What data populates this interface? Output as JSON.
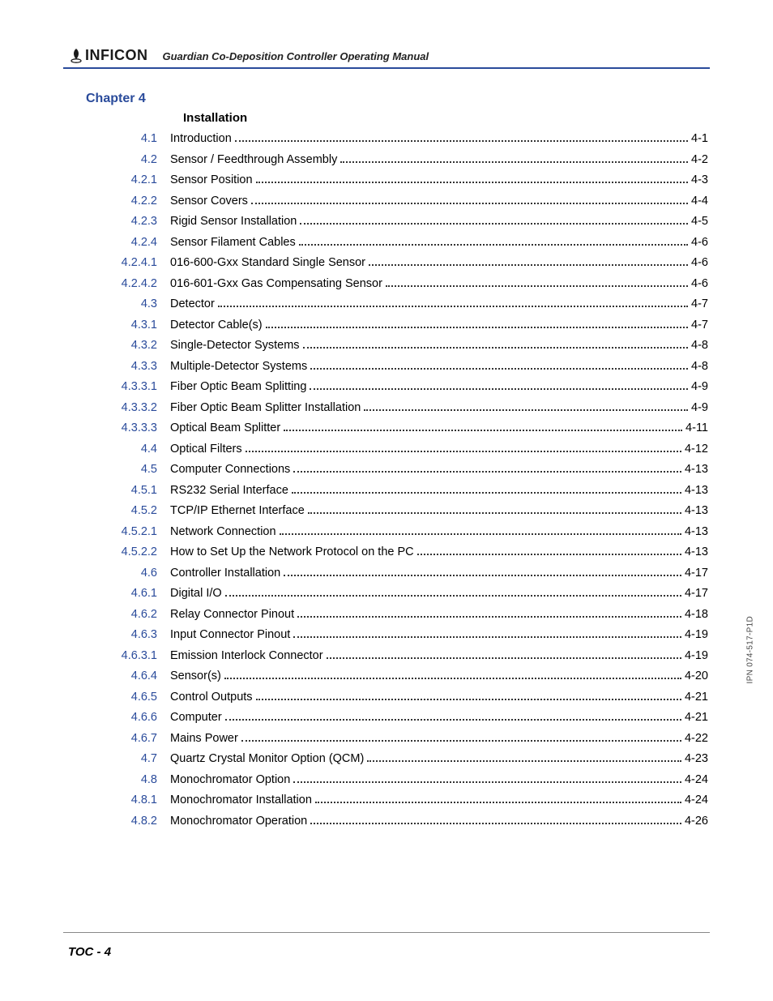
{
  "header": {
    "logo_text": "INFICON",
    "doc_title": "Guardian Co-Deposition Controller Operating Manual"
  },
  "chapter": {
    "label": "Chapter 4",
    "title": "Installation"
  },
  "toc": [
    {
      "num": "4.1",
      "title": "Introduction",
      "page": "4-1"
    },
    {
      "num": "4.2",
      "title": "Sensor / Feedthrough Assembly",
      "page": "4-2"
    },
    {
      "num": "4.2.1",
      "title": "Sensor Position",
      "page": "4-3"
    },
    {
      "num": "4.2.2",
      "title": "Sensor Covers",
      "page": "4-4"
    },
    {
      "num": "4.2.3",
      "title": "Rigid Sensor Installation",
      "page": "4-5"
    },
    {
      "num": "4.2.4",
      "title": "Sensor Filament Cables",
      "page": "4-6"
    },
    {
      "num": "4.2.4.1",
      "title": "016-600-Gxx Standard Single Sensor",
      "page": "4-6"
    },
    {
      "num": "4.2.4.2",
      "title": "016-601-Gxx Gas Compensating Sensor",
      "page": "4-6"
    },
    {
      "num": "4.3",
      "title": "Detector",
      "page": "4-7"
    },
    {
      "num": "4.3.1",
      "title": "Detector Cable(s)",
      "page": "4-7"
    },
    {
      "num": "4.3.2",
      "title": "Single-Detector Systems",
      "page": "4-8"
    },
    {
      "num": "4.3.3",
      "title": "Multiple-Detector Systems",
      "page": "4-8"
    },
    {
      "num": "4.3.3.1",
      "title": "Fiber Optic Beam Splitting",
      "page": "4-9"
    },
    {
      "num": "4.3.3.2",
      "title": "Fiber Optic Beam Splitter Installation",
      "page": "4-9"
    },
    {
      "num": "4.3.3.3",
      "title": "Optical Beam Splitter",
      "page": "4-11"
    },
    {
      "num": "4.4",
      "title": "Optical Filters",
      "page": "4-12"
    },
    {
      "num": "4.5",
      "title": "Computer Connections",
      "page": "4-13"
    },
    {
      "num": "4.5.1",
      "title": "RS232 Serial Interface",
      "page": "4-13"
    },
    {
      "num": "4.5.2",
      "title": "TCP/IP Ethernet Interface",
      "page": "4-13"
    },
    {
      "num": "4.5.2.1",
      "title": "Network Connection",
      "page": "4-13"
    },
    {
      "num": "4.5.2.2",
      "title": "How to Set Up the Network Protocol on the PC",
      "page": "4-13"
    },
    {
      "num": "4.6",
      "title": "Controller Installation",
      "page": "4-17"
    },
    {
      "num": "4.6.1",
      "title": "Digital I/O",
      "page": "4-17"
    },
    {
      "num": "4.6.2",
      "title": "Relay Connector Pinout",
      "page": "4-18"
    },
    {
      "num": "4.6.3",
      "title": "Input Connector Pinout",
      "page": "4-19"
    },
    {
      "num": "4.6.3.1",
      "title": "Emission Interlock Connector",
      "page": "4-19"
    },
    {
      "num": "4.6.4",
      "title": "Sensor(s)",
      "page": "4-20"
    },
    {
      "num": "4.6.5",
      "title": "Control Outputs",
      "page": "4-21"
    },
    {
      "num": "4.6.6",
      "title": "Computer",
      "page": "4-21"
    },
    {
      "num": "4.6.7",
      "title": "Mains Power",
      "page": "4-22"
    },
    {
      "num": "4.7",
      "title": "Quartz Crystal Monitor Option (QCM)",
      "page": "4-23"
    },
    {
      "num": "4.8",
      "title": "Monochromator Option",
      "page": "4-24"
    },
    {
      "num": "4.8.1",
      "title": "Monochromator Installation",
      "page": "4-24"
    },
    {
      "num": "4.8.2",
      "title": "Monochromator Operation",
      "page": "4-26"
    }
  ],
  "footer": "TOC - 4",
  "side_label": "IPN 074-517-P1D",
  "colors": {
    "accent": "#2a4b9b",
    "text": "#000000",
    "background": "#ffffff"
  }
}
